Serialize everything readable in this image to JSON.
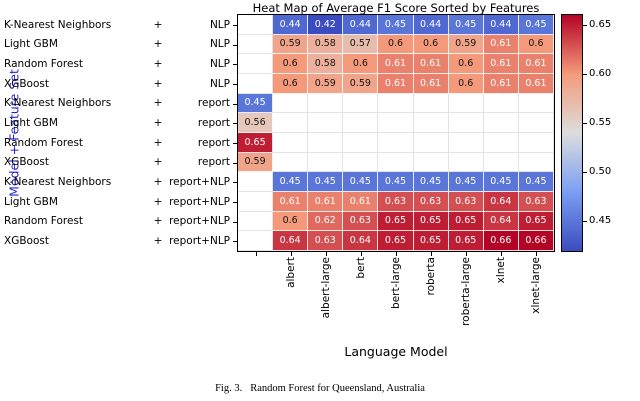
{
  "chart_data": {
    "type": "heatmap",
    "title": "Heat Map of Average F1 Score Sorted by Features",
    "xlabel": "Language Model",
    "ylabel": "Model + Feature Set",
    "colormap": "coolwarm",
    "vmin": 0.42,
    "vmax": 0.66,
    "legend_position": "right",
    "x_categories": [
      "",
      "albert",
      "albert-large",
      "bert",
      "bert-large",
      "roberta",
      "roberta-large",
      "xlnet",
      "xlnet-large"
    ],
    "rows": [
      {
        "model": "K-Nearest Neighbors",
        "plus": "+",
        "feature": "NLP",
        "values": [
          null,
          0.44,
          0.42,
          0.44,
          0.45,
          0.44,
          0.45,
          0.44,
          0.45
        ]
      },
      {
        "model": "Light GBM",
        "plus": "+",
        "feature": "NLP",
        "values": [
          null,
          0.59,
          0.58,
          0.57,
          0.6,
          0.6,
          0.59,
          0.61,
          0.6
        ]
      },
      {
        "model": "Random Forest",
        "plus": "+",
        "feature": "NLP",
        "values": [
          null,
          0.6,
          0.58,
          0.6,
          0.61,
          0.61,
          0.6,
          0.61,
          0.61
        ]
      },
      {
        "model": "XGBoost",
        "plus": "+",
        "feature": "NLP",
        "values": [
          null,
          0.6,
          0.59,
          0.59,
          0.61,
          0.61,
          0.6,
          0.61,
          0.61
        ]
      },
      {
        "model": "K-Nearest Neighbors",
        "plus": "+",
        "feature": "report",
        "values": [
          0.45,
          null,
          null,
          null,
          null,
          null,
          null,
          null,
          null
        ]
      },
      {
        "model": "Light GBM",
        "plus": "+",
        "feature": "report",
        "values": [
          0.56,
          null,
          null,
          null,
          null,
          null,
          null,
          null,
          null
        ]
      },
      {
        "model": "Random Forest",
        "plus": "+",
        "feature": "report",
        "values": [
          0.65,
          null,
          null,
          null,
          null,
          null,
          null,
          null,
          null
        ]
      },
      {
        "model": "XGBoost",
        "plus": "+",
        "feature": "report",
        "values": [
          0.59,
          null,
          null,
          null,
          null,
          null,
          null,
          null,
          null
        ]
      },
      {
        "model": "K-Nearest Neighbors",
        "plus": "+",
        "feature": "report+NLP",
        "values": [
          null,
          0.45,
          0.45,
          0.45,
          0.45,
          0.45,
          0.45,
          0.45,
          0.45
        ]
      },
      {
        "model": "Light GBM",
        "plus": "+",
        "feature": "report+NLP",
        "values": [
          null,
          0.61,
          0.61,
          0.61,
          0.63,
          0.63,
          0.63,
          0.64,
          0.63
        ]
      },
      {
        "model": "Random Forest",
        "plus": "+",
        "feature": "report+NLP",
        "values": [
          null,
          0.6,
          0.62,
          0.63,
          0.65,
          0.65,
          0.65,
          0.64,
          0.65
        ]
      },
      {
        "model": "XGBoost",
        "plus": "+",
        "feature": "report+NLP",
        "values": [
          null,
          0.64,
          0.63,
          0.64,
          0.65,
          0.65,
          0.65,
          0.66,
          0.66
        ]
      }
    ],
    "colorbar_ticks": [
      "0.65",
      "0.60",
      "0.55",
      "0.50",
      "0.45"
    ]
  },
  "caption": {
    "label": "Fig. 3.",
    "text": "Random Forest for Queensland, Australia"
  },
  "colors": {
    "ylabel_text": "#2323cd",
    "cmap_low": "#3b4cc0",
    "cmap_mid": "#dddddd",
    "cmap_high": "#b40426",
    "dark_annot": "#151515"
  }
}
